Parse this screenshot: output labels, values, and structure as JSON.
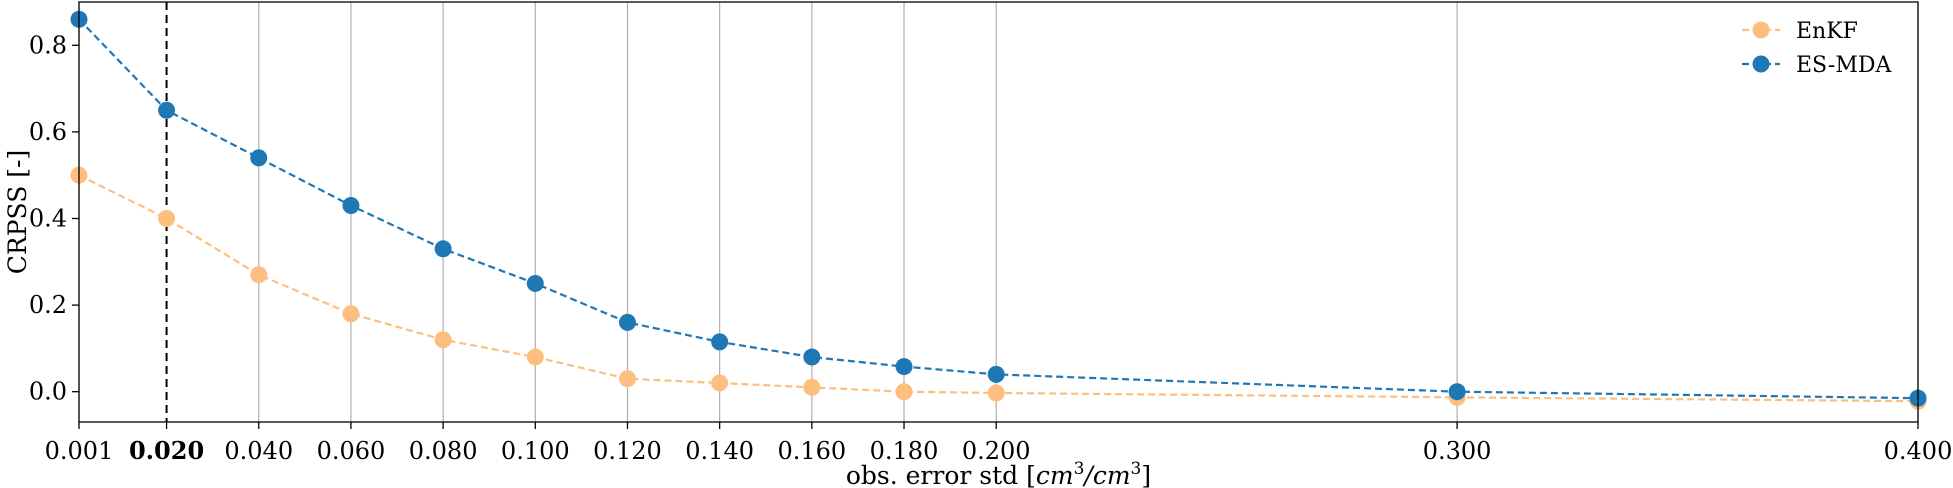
{
  "chart_data": {
    "type": "line",
    "xlabel": "obs. error std [",
    "xlabel_math": "cm",
    "xlabel_sup1": "3",
    "xlabel_slash": "/cm",
    "xlabel_sup2": "3",
    "xlabel_close": "]",
    "ylabel": "CRPSS [-]",
    "xlim": [
      0.001,
      0.4
    ],
    "ylim": [
      -0.07,
      0.9
    ],
    "grid": "vertical",
    "legend_position": "top-right",
    "x": [
      0.001,
      0.02,
      0.04,
      0.06,
      0.08,
      0.1,
      0.12,
      0.14,
      0.16,
      0.18,
      0.2,
      0.3,
      0.4
    ],
    "xtick_labels": [
      "0.001",
      "0.020",
      "0.040",
      "0.060",
      "0.080",
      "0.100",
      "0.120",
      "0.140",
      "0.160",
      "0.180",
      "0.200",
      "0.300",
      "0.400"
    ],
    "highlight_tick": "0.020",
    "vline_x": 0.02,
    "yticks": [
      0.0,
      0.2,
      0.4,
      0.6,
      0.8
    ],
    "ytick_labels": [
      "0.0",
      "0.2",
      "0.4",
      "0.6",
      "0.8"
    ],
    "series": [
      {
        "name": "EnKF",
        "color": "#fdbf7f",
        "values": [
          0.5,
          0.4,
          0.27,
          0.18,
          0.12,
          0.08,
          0.03,
          0.02,
          0.01,
          0.0,
          -0.003,
          -0.013,
          -0.022
        ]
      },
      {
        "name": "ES-MDA",
        "color": "#1f77b4",
        "values": [
          0.86,
          0.65,
          0.54,
          0.43,
          0.33,
          0.25,
          0.16,
          0.115,
          0.08,
          0.058,
          0.04,
          0.0,
          -0.015
        ]
      }
    ]
  }
}
